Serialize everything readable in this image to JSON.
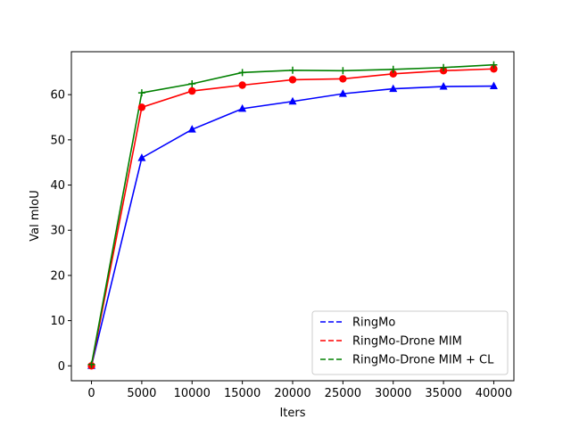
{
  "chart_data": {
    "type": "line",
    "xlabel": "Iters",
    "ylabel": "Val mIoU",
    "xlim": [
      -2000,
      42000
    ],
    "ylim": [
      -3.3,
      69.5
    ],
    "xticks": [
      0,
      5000,
      10000,
      15000,
      20000,
      25000,
      30000,
      35000,
      40000
    ],
    "yticks": [
      0,
      10,
      20,
      30,
      40,
      50,
      60
    ],
    "grid": false,
    "legend_position": "lower-right",
    "x": [
      0,
      5000,
      10000,
      15000,
      20000,
      25000,
      30000,
      35000,
      40000
    ],
    "series": [
      {
        "name": "RingMo",
        "color": "#0000ff",
        "marker": "triangle",
        "values": [
          0.0,
          46.0,
          52.3,
          56.9,
          58.5,
          60.2,
          61.3,
          61.8,
          61.9
        ]
      },
      {
        "name": "RingMo-Drone MIM",
        "color": "#ff0000",
        "marker": "circle",
        "values": [
          0.0,
          57.2,
          60.8,
          62.1,
          63.3,
          63.5,
          64.6,
          65.3,
          65.7
        ]
      },
      {
        "name": "RingMo-Drone MIM + CL",
        "color": "#008000",
        "marker": "plus",
        "values": [
          0.3,
          60.4,
          62.4,
          64.9,
          65.4,
          65.3,
          65.6,
          66.0,
          66.6
        ]
      }
    ]
  }
}
